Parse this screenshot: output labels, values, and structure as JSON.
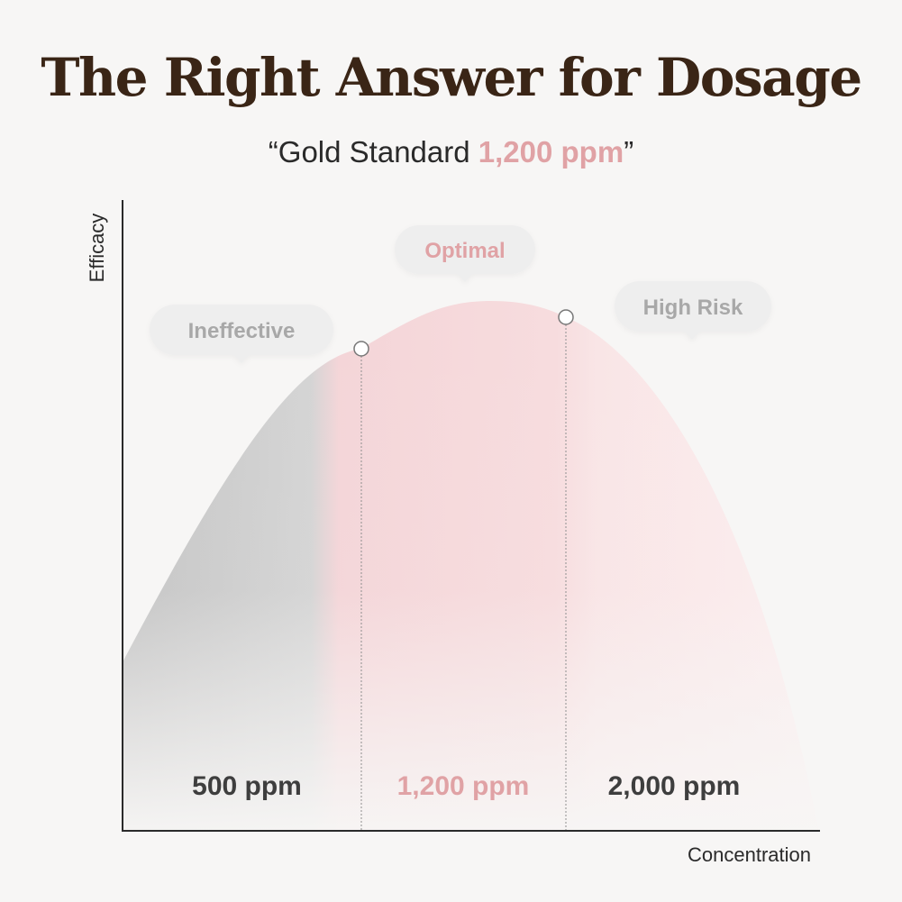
{
  "title": "The Right Answer for Dosage",
  "subtitle": {
    "open_quote": "“Gold Standard ",
    "highlight": "1,200 ppm",
    "close_quote": "”"
  },
  "colors": {
    "title": "#3a2516",
    "accent_pink": "#e0a2a5",
    "zone_gray": "#d2d2d2",
    "zone_pink": "#f6d3d6"
  },
  "chart": {
    "y_axis_label": "Efficacy",
    "x_axis_label": "Concentration",
    "zones": [
      {
        "key": "ineffective",
        "bubble": "Ineffective",
        "value_label": "500 ppm"
      },
      {
        "key": "optimal",
        "bubble": "Optimal",
        "value_label": "1,200 ppm"
      },
      {
        "key": "high-risk",
        "bubble": "High Risk",
        "value_label": "2,000 ppm"
      }
    ]
  }
}
